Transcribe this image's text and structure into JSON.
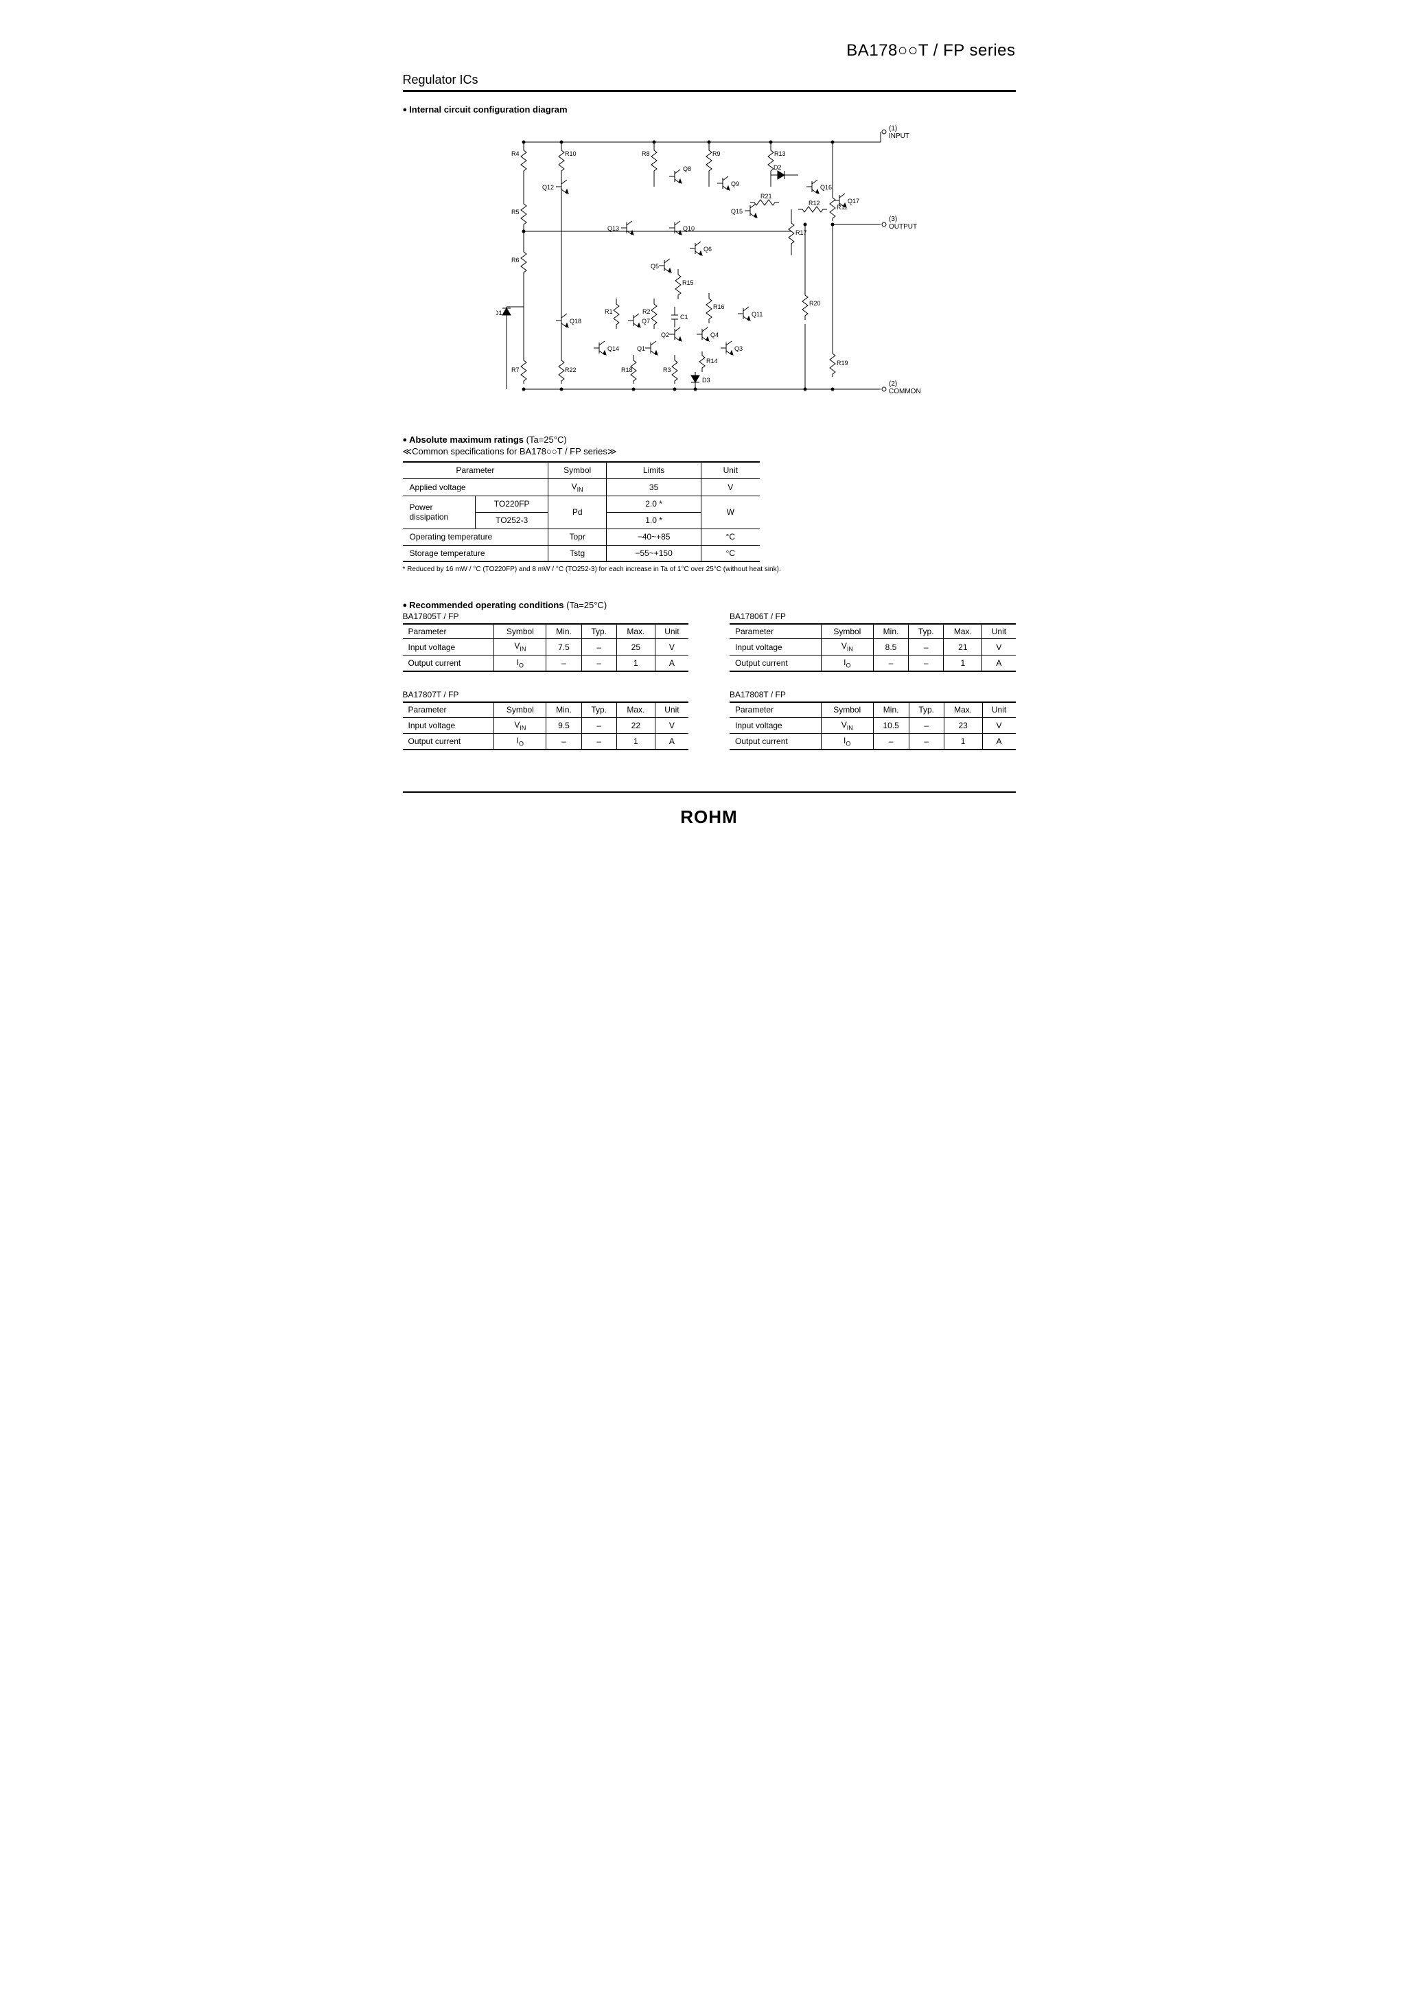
{
  "header": {
    "series_title": "BA178○○T / FP series",
    "category": "Regulator ICs"
  },
  "sections": {
    "diagram_title": "Internal circuit configuration diagram",
    "amr_title": "Absolute maximum ratings",
    "amr_cond": " (Ta=25°C)",
    "amr_sub": "≪Common specifications for BA178○○T / FP series≫",
    "roc_title": "Recommended operating conditions",
    "roc_cond": " (Ta=25°C)"
  },
  "diagram": {
    "pins": {
      "in": "(1) INPUT",
      "out": "(3) OUTPUT",
      "com": "(2) COMMON"
    },
    "refs": {
      "R": [
        "R1",
        "R2",
        "R3",
        "R4",
        "R5",
        "R6",
        "R7",
        "R8",
        "R9",
        "R10",
        "R11",
        "R12",
        "R13",
        "R14",
        "R15",
        "R16",
        "R17",
        "R18",
        "R19",
        "R20",
        "R21",
        "R22"
      ],
      "Q": [
        "Q1",
        "Q2",
        "Q3",
        "Q4",
        "Q5",
        "Q6",
        "Q7",
        "Q8",
        "Q9",
        "Q10",
        "Q11",
        "Q12",
        "Q13",
        "Q14",
        "Q15",
        "Q16",
        "Q17",
        "Q18"
      ],
      "D": [
        "D1",
        "D2",
        "D3"
      ],
      "C": [
        "C1"
      ]
    },
    "stroke": "#000000",
    "bg": "#ffffff"
  },
  "amr_table": {
    "columns": [
      "Parameter",
      "Symbol",
      "Limits",
      "Unit"
    ],
    "rows": [
      {
        "param": "Applied voltage",
        "sub": null,
        "symbol": "V",
        "symsub": "IN",
        "limits": "35",
        "unit": "V"
      },
      {
        "param": "Power dissipation",
        "sub": "TO220FP",
        "symbol": "Pd",
        "symsub": null,
        "limits": "2.0 *",
        "unit": "W",
        "rowspan": 2
      },
      {
        "param": null,
        "sub": "TO252-3",
        "symbol": null,
        "symsub": null,
        "limits": "1.0 *",
        "unit": null
      },
      {
        "param": "Operating temperature",
        "sub": null,
        "symbol": "Topr",
        "symsub": null,
        "limits": "−40~+85",
        "unit": "°C"
      },
      {
        "param": "Storage temperature",
        "sub": null,
        "symbol": "Tstg",
        "symsub": null,
        "limits": "−55~+150",
        "unit": "°C"
      }
    ],
    "footnote": "* Reduced by 16 mW / °C (TO220FP) and 8 mW / °C (TO252-3) for each increase in Ta of 1°C over 25°C (without heat sink)."
  },
  "roc_tables": [
    {
      "name": "BA17805T / FP",
      "columns": [
        "Parameter",
        "Symbol",
        "Min.",
        "Typ.",
        "Max.",
        "Unit"
      ],
      "rows": [
        {
          "param": "Input voltage",
          "symbol": "V",
          "symsub": "IN",
          "min": "7.5",
          "typ": "–",
          "max": "25",
          "unit": "V"
        },
        {
          "param": "Output current",
          "symbol": "I",
          "symsub": "O",
          "min": "–",
          "typ": "–",
          "max": "1",
          "unit": "A"
        }
      ]
    },
    {
      "name": "BA17806T / FP",
      "columns": [
        "Parameter",
        "Symbol",
        "Min.",
        "Typ.",
        "Max.",
        "Unit"
      ],
      "rows": [
        {
          "param": "Input voltage",
          "symbol": "V",
          "symsub": "IN",
          "min": "8.5",
          "typ": "–",
          "max": "21",
          "unit": "V"
        },
        {
          "param": "Output current",
          "symbol": "I",
          "symsub": "O",
          "min": "–",
          "typ": "–",
          "max": "1",
          "unit": "A"
        }
      ]
    },
    {
      "name": "BA17807T / FP",
      "columns": [
        "Parameter",
        "Symbol",
        "Min.",
        "Typ.",
        "Max.",
        "Unit"
      ],
      "rows": [
        {
          "param": "Input voltage",
          "symbol": "V",
          "symsub": "IN",
          "min": "9.5",
          "typ": "–",
          "max": "22",
          "unit": "V"
        },
        {
          "param": "Output current",
          "symbol": "I",
          "symsub": "O",
          "min": "–",
          "typ": "–",
          "max": "1",
          "unit": "A"
        }
      ]
    },
    {
      "name": "BA17808T / FP",
      "columns": [
        "Parameter",
        "Symbol",
        "Min.",
        "Typ.",
        "Max.",
        "Unit"
      ],
      "rows": [
        {
          "param": "Input voltage",
          "symbol": "V",
          "symsub": "IN",
          "min": "10.5",
          "typ": "–",
          "max": "23",
          "unit": "V"
        },
        {
          "param": "Output current",
          "symbol": "I",
          "symsub": "O",
          "min": "–",
          "typ": "–",
          "max": "1",
          "unit": "A"
        }
      ]
    }
  ],
  "footer": {
    "logo": "ROHM"
  }
}
